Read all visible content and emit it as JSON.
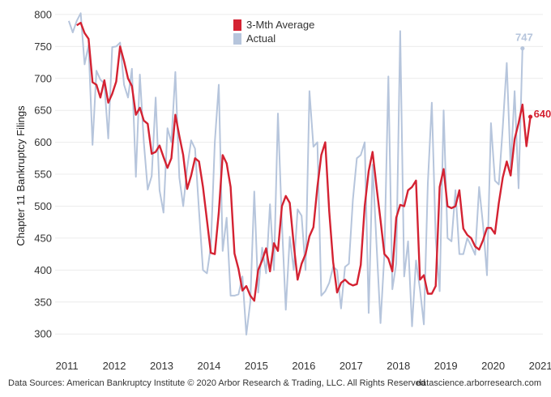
{
  "chart_data": {
    "type": "line",
    "ylabel": "Chapter 11 Bankruptcy Filings",
    "xlabel": "",
    "ylim": [
      280,
      810
    ],
    "xlim": [
      2010.75,
      2021.05
    ],
    "yticks": [
      300,
      350,
      400,
      450,
      500,
      550,
      600,
      650,
      700,
      750,
      800
    ],
    "xticks": [
      2011,
      2012,
      2013,
      2014,
      2015,
      2016,
      2017,
      2018,
      2019,
      2020,
      2021
    ],
    "grid": "horizontal",
    "legend_position": "top-center",
    "x_start": 2011.04,
    "x_step": 0.0833,
    "series": [
      {
        "name": "3-Mth Average",
        "color": "#d42232",
        "start_index": 2,
        "end_label": "640",
        "values": [
          783,
          787,
          771,
          762,
          694,
          690,
          670,
          697,
          662,
          676,
          695,
          750,
          727,
          700,
          688,
          643,
          654,
          634,
          629,
          582,
          585,
          595,
          577,
          560,
          575,
          643,
          610,
          580,
          527,
          548,
          575,
          570,
          530,
          478,
          427,
          425,
          490,
          580,
          567,
          530,
          426,
          402,
          368,
          375,
          360,
          352,
          400,
          415,
          434,
          398,
          442,
          430,
          500,
          516,
          505,
          440,
          385,
          410,
          425,
          453,
          467,
          530,
          580,
          600,
          492,
          413,
          365,
          380,
          385,
          379,
          376,
          378,
          408,
          500,
          555,
          585,
          530,
          478,
          425,
          418,
          398,
          482,
          502,
          500,
          525,
          530,
          540,
          385,
          392,
          363,
          363,
          375,
          530,
          558,
          500,
          497,
          500,
          525,
          465,
          455,
          450,
          437,
          432,
          447,
          466,
          466,
          457,
          505,
          545,
          570,
          548,
          605,
          630,
          659,
          594,
          640
        ]
      },
      {
        "name": "Actual",
        "color": "#b6c5dc",
        "end_label": "747",
        "values": [
          790,
          772,
          790,
          802,
          722,
          752,
          596,
          712,
          698,
          692,
          606,
          749,
          750,
          756,
          690,
          670,
          715,
          546,
          706,
          600,
          526,
          547,
          670,
          525,
          490,
          622,
          600,
          710,
          545,
          500,
          560,
          603,
          590,
          493,
          400,
          395,
          437,
          600,
          690,
          430,
          482,
          360,
          360,
          362,
          390,
          299,
          350,
          523,
          365,
          435,
          395,
          503,
          400,
          645,
          474,
          338,
          452,
          400,
          495,
          485,
          400,
          680,
          593,
          600,
          360,
          367,
          380,
          405,
          400,
          340,
          405,
          410,
          510,
          575,
          580,
          600,
          333,
          565,
          440,
          317,
          425,
          703,
          370,
          410,
          774,
          390,
          445,
          312,
          415,
          370,
          315,
          536,
          662,
          450,
          367,
          650,
          450,
          445,
          525,
          425,
          425,
          450,
          438,
          424,
          530,
          470,
          392,
          630,
          540,
          534,
          624,
          724,
          560,
          680,
          528,
          747
        ]
      }
    ]
  },
  "footer": {
    "source": "Data Sources: American Bankruptcy Institute © 2020 Arbor Research & Trading, LLC. All Rights Reserved",
    "site": "datascience.arborresearch.com"
  }
}
